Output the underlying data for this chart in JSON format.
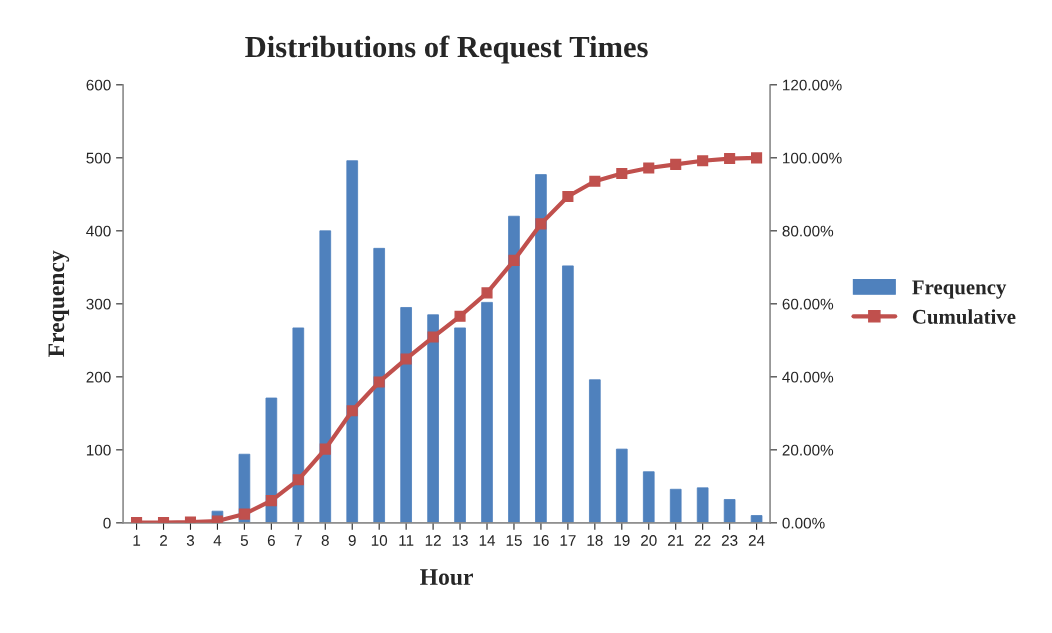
{
  "chart_data": {
    "type": "bar",
    "title": "Distributions of Request Times",
    "xlabel": "Hour",
    "ylabel": "Frequency",
    "categories": [
      "1",
      "2",
      "3",
      "4",
      "5",
      "6",
      "7",
      "8",
      "9",
      "10",
      "11",
      "12",
      "13",
      "14",
      "15",
      "16",
      "17",
      "18",
      "19",
      "20",
      "21",
      "22",
      "23",
      "24"
    ],
    "series": [
      {
        "name": "Frequency",
        "color": "#4f81bd",
        "values": [
          0,
          0,
          0,
          16,
          94,
          171,
          267,
          400,
          496,
          376,
          295,
          285,
          267,
          302,
          420,
          477,
          352,
          196,
          101,
          70,
          46,
          48,
          32,
          10
        ]
      },
      {
        "name": "Cumulative",
        "type": "line",
        "axis": "y2",
        "color": "#c0504d",
        "marker": "square",
        "values": [
          0.1,
          0.1,
          0.2,
          0.5,
          2.4,
          6.1,
          11.8,
          20.2,
          30.7,
          38.6,
          44.9,
          50.9,
          56.6,
          63.0,
          71.9,
          81.9,
          89.4,
          93.6,
          95.7,
          97.2,
          98.2,
          99.2,
          99.8,
          100
        ]
      }
    ],
    "ylim": [
      0,
      600
    ],
    "yticks": [
      0,
      100,
      200,
      300,
      400,
      500,
      600
    ],
    "y2lim": [
      0,
      120
    ],
    "y2ticks": [
      {
        "value": 0,
        "label": "0.00%"
      },
      {
        "value": 20,
        "label": "20.00%"
      },
      {
        "value": 40,
        "label": "40.00%"
      },
      {
        "value": 60,
        "label": "60.00%"
      },
      {
        "value": 80,
        "label": "80.00%"
      },
      {
        "value": 100,
        "label": "100.00%"
      },
      {
        "value": 120,
        "label": "120.00%"
      }
    ],
    "grid": false,
    "legend": "right"
  }
}
